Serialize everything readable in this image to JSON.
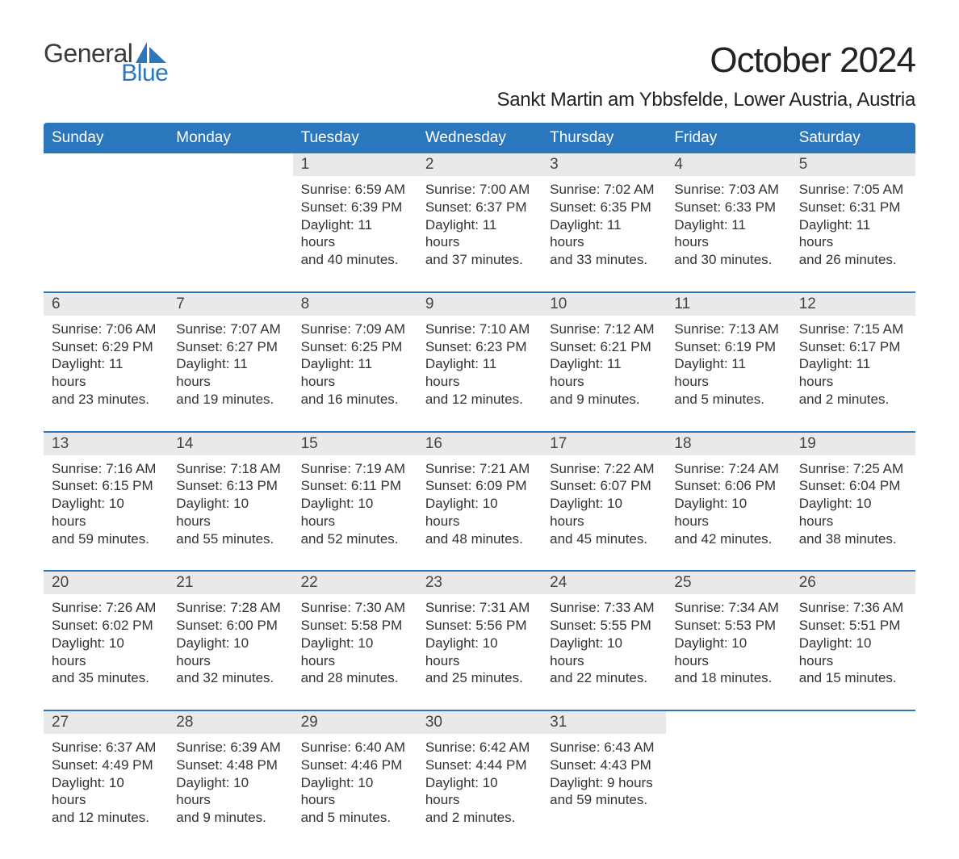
{
  "brand": {
    "line1": "General",
    "line2": "Blue",
    "text_color": "#3a3a3a",
    "accent_color": "#2a77bd"
  },
  "title": "October 2024",
  "location": "Sankt Martin am Ybbsfelde, Lower Austria, Austria",
  "colors": {
    "header_bg": "#2a77bd",
    "header_text": "#ffffff",
    "daynum_bg": "#e9e9e9",
    "daynum_text": "#444444",
    "body_text": "#333333",
    "rule": "#2a77bd",
    "page_bg": "#ffffff"
  },
  "fonts": {
    "title_pt": 44,
    "location_pt": 24,
    "weekday_pt": 19,
    "daynum_pt": 19,
    "body_pt": 17
  },
  "layout": {
    "columns": 7,
    "rows": 5,
    "aspect": "1188x918"
  },
  "weekdays": [
    "Sunday",
    "Monday",
    "Tuesday",
    "Wednesday",
    "Thursday",
    "Friday",
    "Saturday"
  ],
  "weeks": [
    [
      null,
      null,
      {
        "n": "1",
        "sunrise": "Sunrise: 6:59 AM",
        "sunset": "Sunset: 6:39 PM",
        "dl1": "Daylight: 11 hours",
        "dl2": "and 40 minutes."
      },
      {
        "n": "2",
        "sunrise": "Sunrise: 7:00 AM",
        "sunset": "Sunset: 6:37 PM",
        "dl1": "Daylight: 11 hours",
        "dl2": "and 37 minutes."
      },
      {
        "n": "3",
        "sunrise": "Sunrise: 7:02 AM",
        "sunset": "Sunset: 6:35 PM",
        "dl1": "Daylight: 11 hours",
        "dl2": "and 33 minutes."
      },
      {
        "n": "4",
        "sunrise": "Sunrise: 7:03 AM",
        "sunset": "Sunset: 6:33 PM",
        "dl1": "Daylight: 11 hours",
        "dl2": "and 30 minutes."
      },
      {
        "n": "5",
        "sunrise": "Sunrise: 7:05 AM",
        "sunset": "Sunset: 6:31 PM",
        "dl1": "Daylight: 11 hours",
        "dl2": "and 26 minutes."
      }
    ],
    [
      {
        "n": "6",
        "sunrise": "Sunrise: 7:06 AM",
        "sunset": "Sunset: 6:29 PM",
        "dl1": "Daylight: 11 hours",
        "dl2": "and 23 minutes."
      },
      {
        "n": "7",
        "sunrise": "Sunrise: 7:07 AM",
        "sunset": "Sunset: 6:27 PM",
        "dl1": "Daylight: 11 hours",
        "dl2": "and 19 minutes."
      },
      {
        "n": "8",
        "sunrise": "Sunrise: 7:09 AM",
        "sunset": "Sunset: 6:25 PM",
        "dl1": "Daylight: 11 hours",
        "dl2": "and 16 minutes."
      },
      {
        "n": "9",
        "sunrise": "Sunrise: 7:10 AM",
        "sunset": "Sunset: 6:23 PM",
        "dl1": "Daylight: 11 hours",
        "dl2": "and 12 minutes."
      },
      {
        "n": "10",
        "sunrise": "Sunrise: 7:12 AM",
        "sunset": "Sunset: 6:21 PM",
        "dl1": "Daylight: 11 hours",
        "dl2": "and 9 minutes."
      },
      {
        "n": "11",
        "sunrise": "Sunrise: 7:13 AM",
        "sunset": "Sunset: 6:19 PM",
        "dl1": "Daylight: 11 hours",
        "dl2": "and 5 minutes."
      },
      {
        "n": "12",
        "sunrise": "Sunrise: 7:15 AM",
        "sunset": "Sunset: 6:17 PM",
        "dl1": "Daylight: 11 hours",
        "dl2": "and 2 minutes."
      }
    ],
    [
      {
        "n": "13",
        "sunrise": "Sunrise: 7:16 AM",
        "sunset": "Sunset: 6:15 PM",
        "dl1": "Daylight: 10 hours",
        "dl2": "and 59 minutes."
      },
      {
        "n": "14",
        "sunrise": "Sunrise: 7:18 AM",
        "sunset": "Sunset: 6:13 PM",
        "dl1": "Daylight: 10 hours",
        "dl2": "and 55 minutes."
      },
      {
        "n": "15",
        "sunrise": "Sunrise: 7:19 AM",
        "sunset": "Sunset: 6:11 PM",
        "dl1": "Daylight: 10 hours",
        "dl2": "and 52 minutes."
      },
      {
        "n": "16",
        "sunrise": "Sunrise: 7:21 AM",
        "sunset": "Sunset: 6:09 PM",
        "dl1": "Daylight: 10 hours",
        "dl2": "and 48 minutes."
      },
      {
        "n": "17",
        "sunrise": "Sunrise: 7:22 AM",
        "sunset": "Sunset: 6:07 PM",
        "dl1": "Daylight: 10 hours",
        "dl2": "and 45 minutes."
      },
      {
        "n": "18",
        "sunrise": "Sunrise: 7:24 AM",
        "sunset": "Sunset: 6:06 PM",
        "dl1": "Daylight: 10 hours",
        "dl2": "and 42 minutes."
      },
      {
        "n": "19",
        "sunrise": "Sunrise: 7:25 AM",
        "sunset": "Sunset: 6:04 PM",
        "dl1": "Daylight: 10 hours",
        "dl2": "and 38 minutes."
      }
    ],
    [
      {
        "n": "20",
        "sunrise": "Sunrise: 7:26 AM",
        "sunset": "Sunset: 6:02 PM",
        "dl1": "Daylight: 10 hours",
        "dl2": "and 35 minutes."
      },
      {
        "n": "21",
        "sunrise": "Sunrise: 7:28 AM",
        "sunset": "Sunset: 6:00 PM",
        "dl1": "Daylight: 10 hours",
        "dl2": "and 32 minutes."
      },
      {
        "n": "22",
        "sunrise": "Sunrise: 7:30 AM",
        "sunset": "Sunset: 5:58 PM",
        "dl1": "Daylight: 10 hours",
        "dl2": "and 28 minutes."
      },
      {
        "n": "23",
        "sunrise": "Sunrise: 7:31 AM",
        "sunset": "Sunset: 5:56 PM",
        "dl1": "Daylight: 10 hours",
        "dl2": "and 25 minutes."
      },
      {
        "n": "24",
        "sunrise": "Sunrise: 7:33 AM",
        "sunset": "Sunset: 5:55 PM",
        "dl1": "Daylight: 10 hours",
        "dl2": "and 22 minutes."
      },
      {
        "n": "25",
        "sunrise": "Sunrise: 7:34 AM",
        "sunset": "Sunset: 5:53 PM",
        "dl1": "Daylight: 10 hours",
        "dl2": "and 18 minutes."
      },
      {
        "n": "26",
        "sunrise": "Sunrise: 7:36 AM",
        "sunset": "Sunset: 5:51 PM",
        "dl1": "Daylight: 10 hours",
        "dl2": "and 15 minutes."
      }
    ],
    [
      {
        "n": "27",
        "sunrise": "Sunrise: 6:37 AM",
        "sunset": "Sunset: 4:49 PM",
        "dl1": "Daylight: 10 hours",
        "dl2": "and 12 minutes."
      },
      {
        "n": "28",
        "sunrise": "Sunrise: 6:39 AM",
        "sunset": "Sunset: 4:48 PM",
        "dl1": "Daylight: 10 hours",
        "dl2": "and 9 minutes."
      },
      {
        "n": "29",
        "sunrise": "Sunrise: 6:40 AM",
        "sunset": "Sunset: 4:46 PM",
        "dl1": "Daylight: 10 hours",
        "dl2": "and 5 minutes."
      },
      {
        "n": "30",
        "sunrise": "Sunrise: 6:42 AM",
        "sunset": "Sunset: 4:44 PM",
        "dl1": "Daylight: 10 hours",
        "dl2": "and 2 minutes."
      },
      {
        "n": "31",
        "sunrise": "Sunrise: 6:43 AM",
        "sunset": "Sunset: 4:43 PM",
        "dl1": "Daylight: 9 hours",
        "dl2": "and 59 minutes."
      },
      null,
      null
    ]
  ]
}
